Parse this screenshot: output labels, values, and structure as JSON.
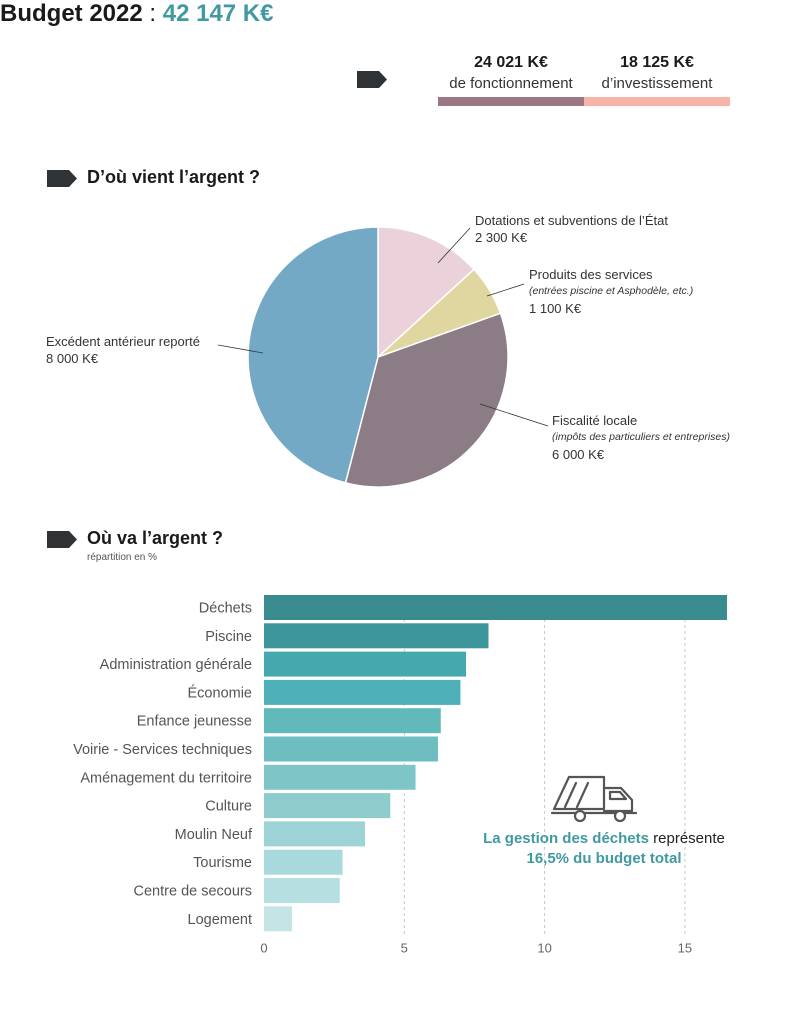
{
  "header": {
    "title_label": "Budget 2022",
    "separator": " : ",
    "total": "42 147 K€",
    "splits": [
      {
        "amount": "24 021 K€",
        "label": "de fonctionnement",
        "color": "#9b7684"
      },
      {
        "amount": "18 125 K€",
        "label": "d’investissement",
        "color": "#f7b3a7"
      }
    ]
  },
  "sections": {
    "income_title": "D’où vient l’argent ?",
    "spending_title": "Où va l’argent ?",
    "spending_subtitle": "répartition en %"
  },
  "icons": {
    "tag": "tag-arrow-icon",
    "truck": "garbage-truck-icon"
  },
  "callouts": [
    {
      "name": "Dotations et subventions de l’État",
      "note": "",
      "value": "2 300 K€"
    },
    {
      "name": "Produits des services",
      "note": "(entrées piscine et Asphodèle, etc.)",
      "value": "1 100 K€"
    },
    {
      "name": "Fiscalité locale",
      "note": "(impôts des particuliers et entreprises)",
      "value": "6 000 K€"
    },
    {
      "name": "Excédent antérieur reporté",
      "note": "",
      "value": "8 000 K€"
    }
  ],
  "truck_note": {
    "part1": "La gestion des déchets",
    "part2": " représente",
    "part3": "16,5% du budget total"
  },
  "chart_data": [
    {
      "type": "pie",
      "title": "D’où vient l’argent ?",
      "slices": [
        {
          "label": "Dotations et subventions de l’État",
          "value": 2300,
          "color": "#ead1da"
        },
        {
          "label": "Produits des services",
          "value": 1100,
          "color": "#e0d69f"
        },
        {
          "label": "Fiscalité locale",
          "value": 6000,
          "color": "#8b7c85"
        },
        {
          "label": "Excédent antérieur reporté",
          "value": 8000,
          "color": "#74a9c6"
        }
      ]
    },
    {
      "type": "bar",
      "orientation": "horizontal",
      "title": "Où va l’argent ?",
      "subtitle": "répartition en %",
      "categories": [
        "Déchets",
        "Piscine",
        "Administration générale",
        "Économie",
        "Enfance jeunesse",
        "Voirie - Services techniques",
        "Aménagement du territoire",
        "Culture",
        "Moulin Neuf",
        "Tourisme",
        "Centre de secours",
        "Logement"
      ],
      "values": [
        16.5,
        8.0,
        7.2,
        7.0,
        6.3,
        6.2,
        5.4,
        4.5,
        3.6,
        2.8,
        2.7,
        1.0
      ],
      "colors": [
        "#3a8b8e",
        "#3d979a",
        "#45a8ae",
        "#4eb0b8",
        "#62b9ba",
        "#6ebdc0",
        "#7ec5c8",
        "#8ecbcd",
        "#9dd3d6",
        "#a8d9dc",
        "#b5dfe0",
        "#c4e4e5"
      ],
      "xticks": [
        0,
        5,
        10,
        15
      ],
      "xlim": [
        0,
        16.5
      ],
      "grid": "vertical dashed"
    }
  ]
}
